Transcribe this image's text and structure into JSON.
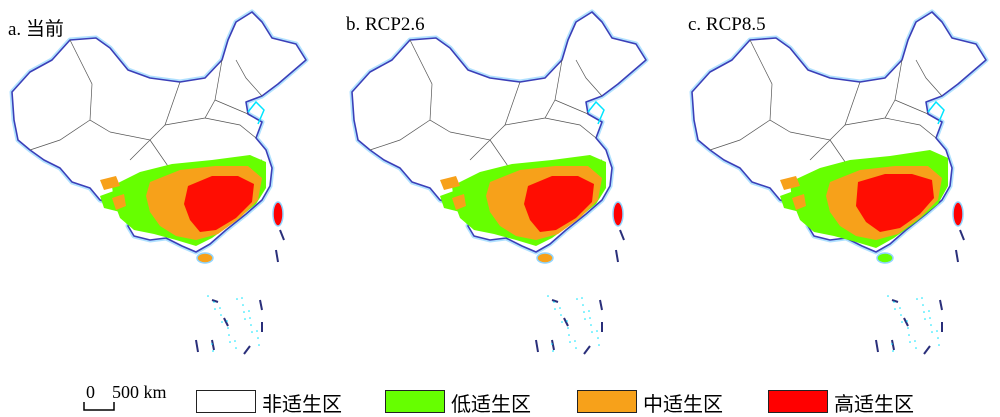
{
  "panels": [
    {
      "label": "a. 当前",
      "variant": "current"
    },
    {
      "label": "b. RCP2.6",
      "variant": "rcp26"
    },
    {
      "label": "c. RCP8.5",
      "variant": "rcp85"
    }
  ],
  "legend": {
    "scale": {
      "zero": "0",
      "distance": "500 km"
    },
    "items": [
      {
        "label": "非适生区",
        "color": "#ffffff"
      },
      {
        "label": "低适生区",
        "color": "#66ff00"
      },
      {
        "label": "中适生区",
        "color": "#f7a11a"
      },
      {
        "label": "高适生区",
        "color": "#ff0000"
      }
    ]
  },
  "colors": {
    "outline": "#3b3fb8",
    "coast_glow": "#8fd4ff",
    "province_lines": "#555555",
    "water": "#00e5ff"
  }
}
